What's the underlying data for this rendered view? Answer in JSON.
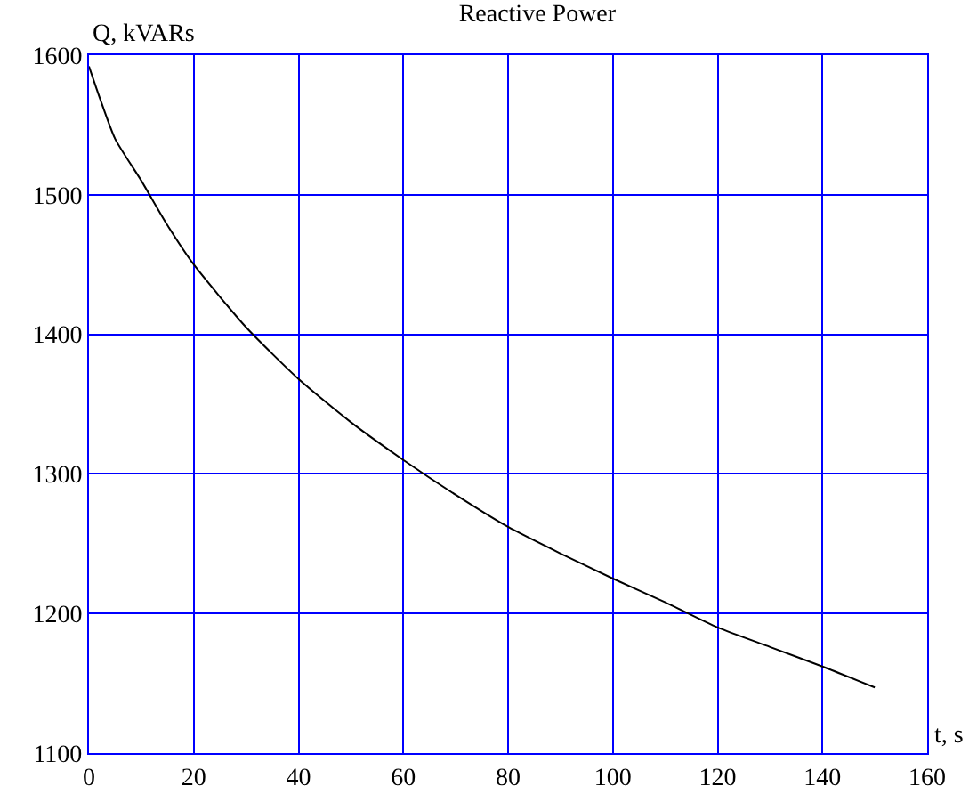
{
  "chart_data": {
    "type": "line",
    "title": "Reactive Power",
    "xlabel": "t, s",
    "ylabel": "Q, kVARs",
    "x": [
      0,
      2,
      5,
      10,
      15,
      20,
      30,
      40,
      50,
      60,
      70,
      80,
      90,
      100,
      110,
      120,
      130,
      140,
      150
    ],
    "series": [
      {
        "color": "#000000",
        "values": [
          1592,
          1570,
          1540,
          1510,
          1478,
          1450,
          1405,
          1368,
          1337,
          1310,
          1285,
          1262,
          1243,
          1225,
          1208,
          1190,
          1176,
          1162,
          1147
        ]
      }
    ],
    "xlim": [
      0,
      160
    ],
    "xticks": [
      0,
      20,
      40,
      60,
      80,
      100,
      120,
      140,
      160
    ],
    "ylim": [
      1100,
      1600
    ],
    "yticks": [
      1100,
      1200,
      1300,
      1400,
      1500,
      1600
    ],
    "grid": true,
    "legend": false,
    "marker": "none",
    "line_style": "solid"
  }
}
